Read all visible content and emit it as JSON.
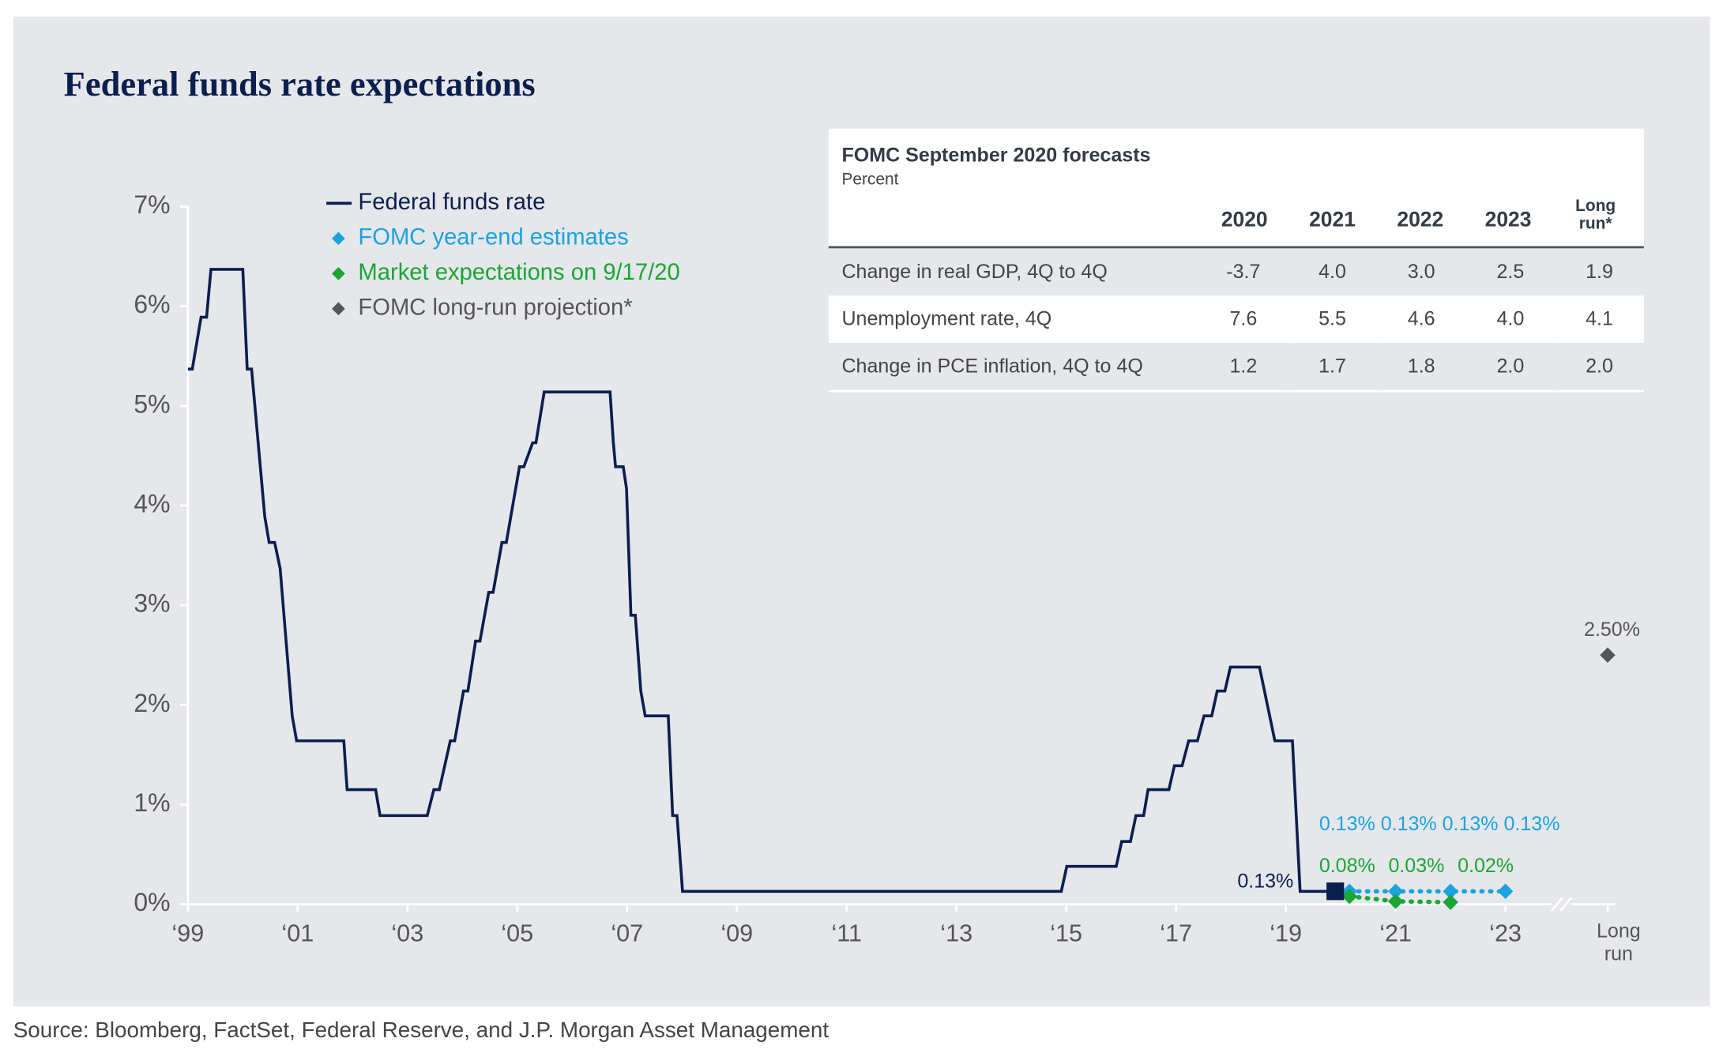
{
  "chart_data": {
    "type": "line",
    "title": "Federal funds rate expectations",
    "source": "Source: Bloomberg, FactSet, Federal Reserve, and J.P. Morgan Asset Management",
    "legend": "top-left",
    "xlim": [
      1999,
      2023
    ],
    "ylim": [
      0,
      7
    ],
    "yticks": [
      {
        "value": 0,
        "label": "0%"
      },
      {
        "value": 1,
        "label": "1%"
      },
      {
        "value": 2,
        "label": "2%"
      },
      {
        "value": 3,
        "label": "3%"
      },
      {
        "value": 4,
        "label": "4%"
      },
      {
        "value": 5,
        "label": "5%"
      },
      {
        "value": 6,
        "label": "6%"
      },
      {
        "value": 7,
        "label": "7%"
      }
    ],
    "xticks": [
      {
        "value": 1999,
        "label": "‘99"
      },
      {
        "value": 2001,
        "label": "‘01"
      },
      {
        "value": 2003,
        "label": "‘03"
      },
      {
        "value": 2005,
        "label": "‘05"
      },
      {
        "value": 2007,
        "label": "‘07"
      },
      {
        "value": 2009,
        "label": "‘09"
      },
      {
        "value": 2011,
        "label": "‘11"
      },
      {
        "value": 2013,
        "label": "‘13"
      },
      {
        "value": 2015,
        "label": "‘15"
      },
      {
        "value": 2017,
        "label": "‘17"
      },
      {
        "value": 2019,
        "label": "‘19"
      },
      {
        "value": 2021,
        "label": "‘21"
      },
      {
        "value": 2023,
        "label": "‘23"
      }
    ],
    "series": [
      {
        "name": "Federal funds rate",
        "color": "#0b1f4f",
        "x": [
          1999.0,
          1999.08,
          1999.24,
          1999.34,
          1999.42,
          2000.0,
          2000.08,
          2000.16,
          2000.4,
          2000.48,
          2000.58,
          2000.68,
          2000.9,
          2000.98,
          2001.84,
          2001.9,
          2002.42,
          2002.5,
          2003.36,
          2003.48,
          2003.58,
          2003.78,
          2003.86,
          2004.02,
          2004.1,
          2004.24,
          2004.32,
          2004.48,
          2004.56,
          2004.72,
          2004.8,
          2005.04,
          2005.12,
          2005.28,
          2005.34,
          2005.49,
          2006.69,
          2006.75,
          2006.79,
          2006.93,
          2006.99,
          2007.07,
          2007.15,
          2007.25,
          2007.33,
          2007.75,
          2007.83,
          2007.91,
          2008.01,
          2014.91,
          2015.01,
          2015.91,
          2016.01,
          2016.17,
          2016.27,
          2016.41,
          2016.49,
          2016.87,
          2016.97,
          2017.11,
          2017.23,
          2017.39,
          2017.51,
          2017.65,
          2017.75,
          2017.89,
          2017.99,
          2018.52,
          2018.8,
          2019.12,
          2019.26,
          2019.9
        ],
        "values": [
          5.37,
          5.37,
          5.89,
          5.89,
          6.37,
          6.37,
          5.37,
          5.37,
          3.89,
          3.63,
          3.63,
          3.37,
          1.89,
          1.64,
          1.64,
          1.15,
          1.15,
          0.89,
          0.89,
          1.15,
          1.15,
          1.64,
          1.64,
          2.14,
          2.14,
          2.64,
          2.64,
          3.13,
          3.13,
          3.63,
          3.63,
          4.39,
          4.39,
          4.63,
          4.63,
          5.14,
          5.14,
          4.63,
          4.39,
          4.39,
          4.17,
          2.9,
          2.9,
          2.14,
          1.89,
          1.89,
          0.89,
          0.89,
          0.13,
          0.13,
          0.38,
          0.38,
          0.63,
          0.63,
          0.89,
          0.89,
          1.15,
          1.15,
          1.39,
          1.39,
          1.64,
          1.64,
          1.89,
          1.89,
          2.14,
          2.14,
          2.38,
          2.38,
          1.64,
          1.64,
          0.13,
          0.13
        ],
        "current_label": "0.13%"
      },
      {
        "name": "FOMC year-end estimates",
        "color": "#1ba3e0",
        "x": [
          2020.16,
          2021,
          2022,
          2023
        ],
        "values": [
          0.13,
          0.13,
          0.13,
          0.13
        ],
        "value_labels": [
          "0.13%",
          "0.13%",
          "0.13%",
          "0.13%"
        ]
      },
      {
        "name": "Market expectations on 9/17/20",
        "color": "#1aa535",
        "x": [
          2020.16,
          2021,
          2022
        ],
        "values": [
          0.08,
          0.03,
          0.02
        ],
        "value_labels": [
          "0.08%",
          "0.03%",
          "0.02%"
        ]
      }
    ],
    "long_run": {
      "name": "FOMC long-run projection*",
      "color": "#555555",
      "label": "Long run",
      "value": 2.5,
      "value_label": "2.50%"
    },
    "table": {
      "title": "FOMC September 2020 forecasts",
      "subtitle": "Percent",
      "columns": [
        "2020",
        "2021",
        "2022",
        "2023",
        "Long run*"
      ],
      "rows": [
        [
          "Change in real GDP, 4Q to 4Q",
          "-3.7",
          "4.0",
          "3.0",
          "2.5",
          "1.9"
        ],
        [
          "Unemployment rate, 4Q",
          "7.6",
          "5.5",
          "4.6",
          "4.0",
          "4.1"
        ],
        [
          "Change in PCE inflation, 4Q to 4Q",
          "1.2",
          "1.7",
          "1.8",
          "2.0",
          "2.0"
        ]
      ]
    }
  }
}
